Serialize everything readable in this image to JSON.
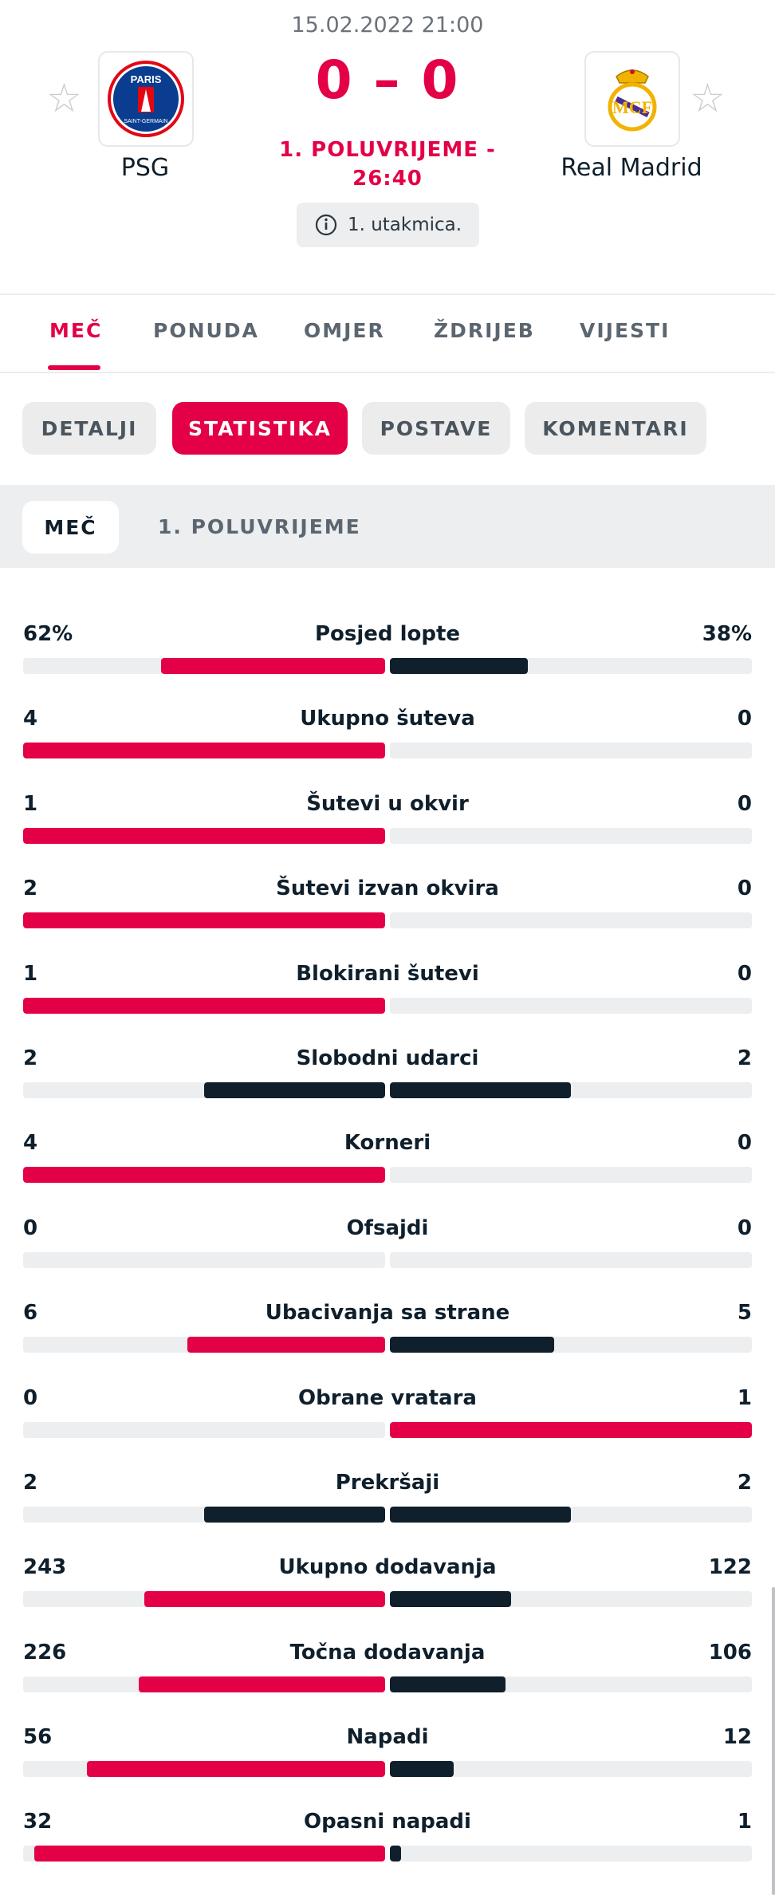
{
  "match": {
    "datetime": "15.02.2022 21:00",
    "score": "0 – 0",
    "status_line1": "1. POLUVRIJEME -",
    "status_line2": "26:40",
    "info": "1. utakmica.",
    "home": {
      "name": "PSG",
      "logo_text": "PARIS"
    },
    "away": {
      "name": "Real Madrid",
      "logo_text": "MCF"
    }
  },
  "main_tabs": [
    {
      "label": "MEČ",
      "active": true
    },
    {
      "label": "PONUDA",
      "active": false
    },
    {
      "label": "OMJER",
      "active": false
    },
    {
      "label": "ŽDRIJEB",
      "active": false
    },
    {
      "label": "VIJESTI",
      "active": false
    }
  ],
  "sub_tabs": [
    {
      "label": "DETALJI",
      "active": false
    },
    {
      "label": "STATISTIKA",
      "active": true
    },
    {
      "label": "POSTAVE",
      "active": false
    },
    {
      "label": "KOMENTARI",
      "active": false
    }
  ],
  "periods": {
    "selected": "MEČ",
    "other": "1. POLUVRIJEME"
  },
  "colors": {
    "accent": "#e40046",
    "dark": "#0f1f2c",
    "track": "#eceeef"
  },
  "stats": [
    {
      "name": "Posjed lopte",
      "home": "62%",
      "away": "38%",
      "home_val": 62,
      "away_val": 38
    },
    {
      "name": "Ukupno šuteva",
      "home": "4",
      "away": "0",
      "home_val": 4,
      "away_val": 0
    },
    {
      "name": "Šutevi u okvir",
      "home": "1",
      "away": "0",
      "home_val": 1,
      "away_val": 0
    },
    {
      "name": "Šutevi izvan okvira",
      "home": "2",
      "away": "0",
      "home_val": 2,
      "away_val": 0
    },
    {
      "name": "Blokirani šutevi",
      "home": "1",
      "away": "0",
      "home_val": 1,
      "away_val": 0
    },
    {
      "name": "Slobodni udarci",
      "home": "2",
      "away": "2",
      "home_val": 2,
      "away_val": 2
    },
    {
      "name": "Korneri",
      "home": "4",
      "away": "0",
      "home_val": 4,
      "away_val": 0
    },
    {
      "name": "Ofsajdi",
      "home": "0",
      "away": "0",
      "home_val": 0,
      "away_val": 0
    },
    {
      "name": "Ubacivanja sa strane",
      "home": "6",
      "away": "5",
      "home_val": 6,
      "away_val": 5
    },
    {
      "name": "Obrane vratara",
      "home": "0",
      "away": "1",
      "home_val": 0,
      "away_val": 1
    },
    {
      "name": "Prekršaji",
      "home": "2",
      "away": "2",
      "home_val": 2,
      "away_val": 2
    },
    {
      "name": "Ukupno dodavanja",
      "home": "243",
      "away": "122",
      "home_val": 243,
      "away_val": 122
    },
    {
      "name": "Točna dodavanja",
      "home": "226",
      "away": "106",
      "home_val": 226,
      "away_val": 106
    },
    {
      "name": "Napadi",
      "home": "56",
      "away": "12",
      "home_val": 56,
      "away_val": 12
    },
    {
      "name": "Opasni napadi",
      "home": "32",
      "away": "1",
      "home_val": 32,
      "away_val": 1
    }
  ]
}
